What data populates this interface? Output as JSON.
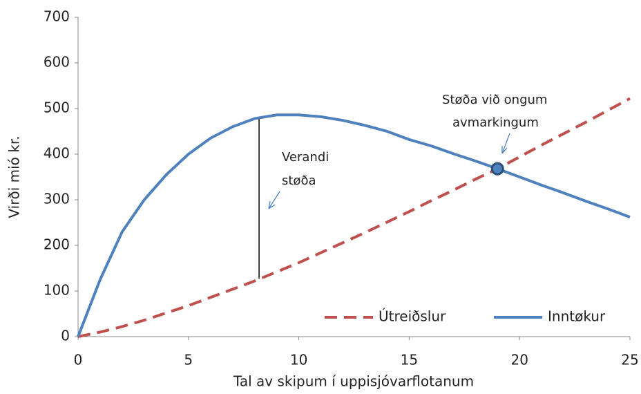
{
  "chart_data": {
    "type": "line",
    "x_label": "Tal av skipum í uppisjóvarflotanum",
    "y_label": "Virði mió kr.",
    "x": [
      0,
      1,
      2,
      3,
      4,
      5,
      6,
      7,
      8,
      9,
      10,
      11,
      12,
      13,
      14,
      15,
      16,
      17,
      18,
      19,
      20,
      21,
      22,
      23,
      24,
      25
    ],
    "series": [
      {
        "name": "Útreiðslur",
        "color": "#c0504d",
        "dashed": true,
        "values": [
          0,
          10,
          22,
          36,
          52,
          68,
          86,
          104,
          122,
          142,
          162,
          184,
          206,
          228,
          251,
          274,
          298,
          321,
          345,
          368,
          394,
          420,
          445,
          470,
          496,
          522
        ]
      },
      {
        "name": "Inntøkur",
        "color": "#4f81bd",
        "dashed": false,
        "values": [
          0,
          125,
          230,
          300,
          355,
          400,
          435,
          460,
          478,
          486,
          486,
          482,
          474,
          463,
          450,
          432,
          418,
          401,
          385,
          368,
          350,
          332,
          315,
          297,
          280,
          262
        ]
      }
    ],
    "xlim": [
      0,
      25
    ],
    "xticks": [
      0,
      5,
      10,
      15,
      20,
      25
    ],
    "ylim": [
      0,
      700
    ],
    "yticks": [
      0,
      100,
      200,
      300,
      400,
      500,
      600,
      700
    ],
    "annotations": [
      {
        "lines": [
          "Verandi",
          "støða"
        ]
      },
      {
        "lines": [
          "Støða við ongum",
          "avmarkingum"
        ]
      }
    ],
    "legend": "lower right"
  }
}
